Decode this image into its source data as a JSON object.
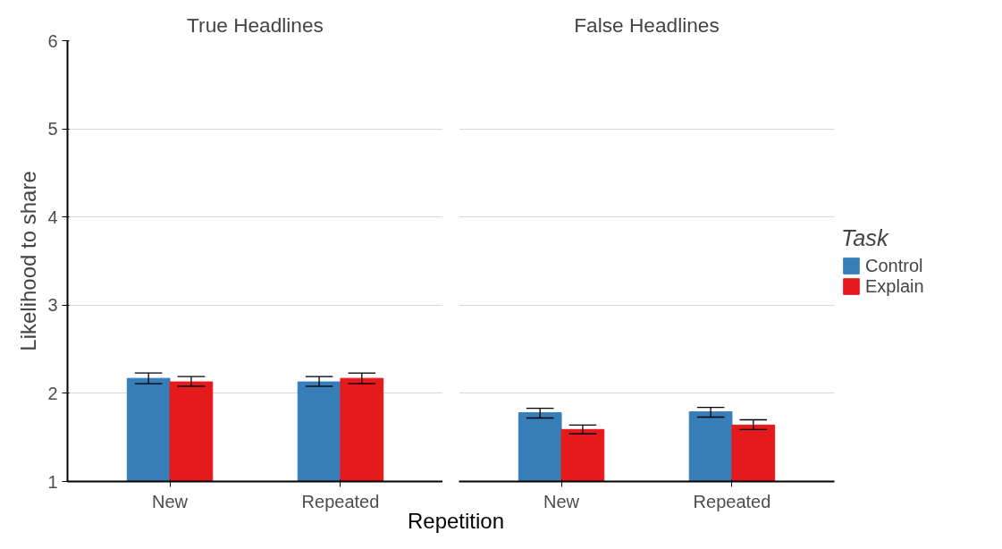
{
  "chart_data": [
    {
      "type": "bar",
      "title": "True Headlines",
      "ylabel": "Likelihood to share",
      "xlabel": "Repetition",
      "categories": [
        "New",
        "Repeated"
      ],
      "ylim": [
        1,
        6
      ],
      "yticks": [
        1,
        2,
        3,
        4,
        5,
        6
      ],
      "grid": "y",
      "series": [
        {
          "color": "#377eb8",
          "values": [
            2.17,
            2.13
          ],
          "errors": [
            [
              2.11,
              2.23
            ],
            [
              2.08,
              2.19
            ]
          ]
        },
        {
          "color": "#e41a1c",
          "values": [
            2.13,
            2.17
          ],
          "errors": [
            [
              2.08,
              2.19
            ],
            [
              2.11,
              2.23
            ]
          ]
        }
      ]
    },
    {
      "type": "bar",
      "title": "False Headlines",
      "categories": [
        "New",
        "Repeated"
      ],
      "ylim": [
        1,
        6
      ],
      "yticks": [
        1,
        2,
        3,
        4,
        5,
        6
      ],
      "grid": "y",
      "tick_labels": "x",
      "legend": "right",
      "legend_title": "Task",
      "series": [
        {
          "name": "Control",
          "color": "#377eb8",
          "values": [
            1.78,
            1.79
          ],
          "errors": [
            [
              1.72,
              1.83
            ],
            [
              1.73,
              1.84
            ]
          ]
        },
        {
          "name": "Explain",
          "color": "#e41a1c",
          "values": [
            1.59,
            1.64
          ],
          "errors": [
            [
              1.54,
              1.64
            ],
            [
              1.59,
              1.7
            ]
          ]
        }
      ]
    }
  ]
}
